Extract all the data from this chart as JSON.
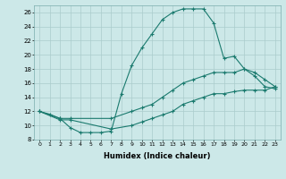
{
  "xlabel": "Humidex (Indice chaleur)",
  "bg_color": "#cce8e8",
  "grid_color": "#aacccc",
  "line_color": "#1a7a6e",
  "xlim": [
    -0.5,
    23.5
  ],
  "ylim": [
    8,
    27
  ],
  "xticks": [
    0,
    1,
    2,
    3,
    4,
    5,
    6,
    7,
    8,
    9,
    10,
    11,
    12,
    13,
    14,
    15,
    16,
    17,
    18,
    19,
    20,
    21,
    22,
    23
  ],
  "yticks": [
    8,
    10,
    12,
    14,
    16,
    18,
    20,
    22,
    24,
    26
  ],
  "line1_x": [
    0,
    1,
    2,
    3,
    4,
    5,
    6,
    7,
    8,
    9,
    10,
    11,
    12,
    13,
    14,
    15,
    16,
    17,
    18,
    19,
    20,
    21,
    22,
    23
  ],
  "line1_y": [
    12,
    11.6,
    11,
    9.7,
    9,
    9,
    9,
    9.2,
    14.5,
    18.5,
    21,
    23,
    25,
    26,
    26.5,
    26.5,
    26.5,
    24.5,
    19.5,
    19.8,
    18,
    17,
    15.5,
    15.2
  ],
  "line2_x": [
    0,
    2,
    3,
    7,
    9,
    10,
    11,
    12,
    13,
    14,
    15,
    16,
    17,
    18,
    19,
    20,
    21,
    22,
    23
  ],
  "line2_y": [
    12,
    11,
    11,
    11,
    12,
    12.5,
    13,
    14,
    15,
    16,
    16.5,
    17,
    17.5,
    17.5,
    17.5,
    18,
    17.5,
    16.5,
    15.5
  ],
  "line3_x": [
    0,
    2,
    3,
    7,
    9,
    10,
    11,
    12,
    13,
    14,
    15,
    16,
    17,
    18,
    19,
    20,
    21,
    22,
    23
  ],
  "line3_y": [
    12,
    10.8,
    10.8,
    9.5,
    10,
    10.5,
    11,
    11.5,
    12,
    13,
    13.5,
    14,
    14.5,
    14.5,
    14.8,
    15,
    15,
    15,
    15.5
  ]
}
